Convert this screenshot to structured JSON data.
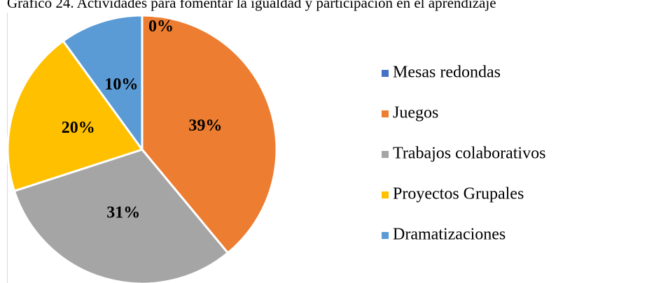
{
  "chart_data": {
    "type": "pie",
    "title": "Gráfico 24. Actividades para fomentar la igualdad y participación en el aprendizaje",
    "categories": [
      "Mesas redondas",
      "Juegos",
      "Trabajos colaborativos",
      "Proyectos Grupales",
      "Dramatizaciones"
    ],
    "values": [
      0,
      39,
      31,
      20,
      10
    ],
    "value_labels": [
      "0%",
      "39%",
      "31%",
      "20%",
      "10%"
    ],
    "colors": [
      "#4472c4",
      "#ed7d31",
      "#a5a5a5",
      "#ffc000",
      "#5b9bd5"
    ],
    "legend": "right"
  }
}
